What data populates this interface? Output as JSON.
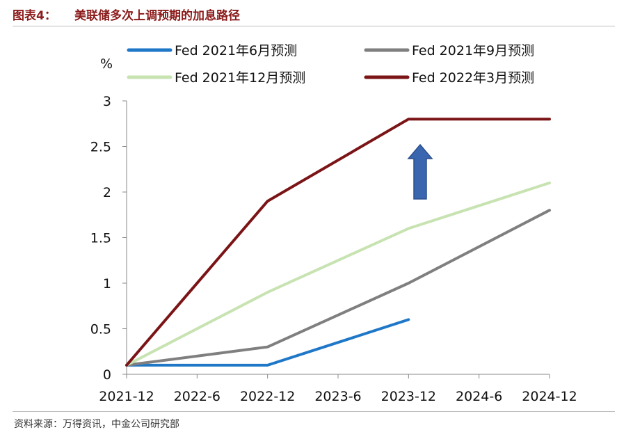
{
  "header": {
    "label": "图表4：",
    "title": "美联储多次上调预期的加息路径"
  },
  "source": "资料来源：万得资讯，中金公司研究部",
  "colors": {
    "title": "#8b1a1a",
    "jun2021": "#1f77c8",
    "sep2021": "#7f7f7f",
    "dec2021": "#c8e3b2",
    "mar2022": "#7b1416",
    "arrow": "#3a66b0"
  },
  "icons": {
    "arrow": "up-arrow-icon"
  },
  "chart_data": {
    "type": "line",
    "title": "美联储多次上调预期的加息路径",
    "ylabel": "%",
    "xlabel": "",
    "categories": [
      "2021-12",
      "2022-6",
      "2022-12",
      "2023-6",
      "2023-12",
      "2024-6",
      "2024-12"
    ],
    "yticks": [
      "0",
      "0.5",
      "1",
      "1.5",
      "2",
      "2.5",
      "3"
    ],
    "ylim": [
      0,
      3
    ],
    "grid": false,
    "legend_position": "top",
    "series": [
      {
        "name": "Fed 2021年6月预测",
        "color": "#1f77c8",
        "x": [
          "2021-12",
          "2022-12",
          "2023-12"
        ],
        "values": [
          0.1,
          0.1,
          0.6
        ]
      },
      {
        "name": "Fed 2021年9月预测",
        "color": "#7f7f7f",
        "x": [
          "2021-12",
          "2022-12",
          "2023-12",
          "2024-12"
        ],
        "values": [
          0.1,
          0.3,
          1.0,
          1.8
        ]
      },
      {
        "name": "Fed 2021年12月预测",
        "color": "#c8e3b2",
        "x": [
          "2021-12",
          "2022-12",
          "2023-12",
          "2024-12"
        ],
        "values": [
          0.1,
          0.9,
          1.6,
          2.1
        ]
      },
      {
        "name": "Fed 2022年3月预测",
        "color": "#7b1416",
        "x": [
          "2021-12",
          "2022-12",
          "2023-12",
          "2024-12"
        ],
        "values": [
          0.1,
          1.9,
          2.8,
          2.8
        ]
      }
    ]
  }
}
